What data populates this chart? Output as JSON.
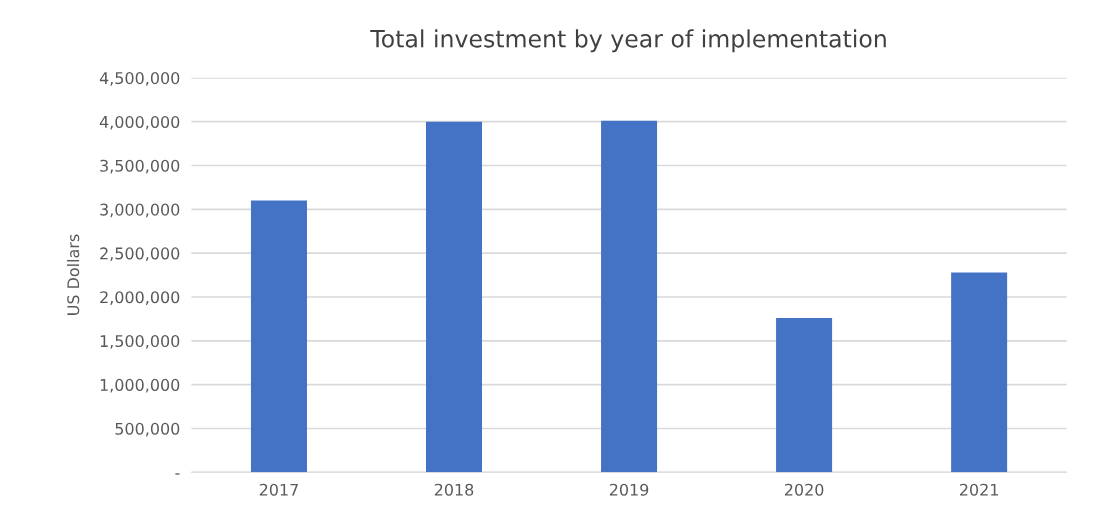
{
  "chart_data": {
    "type": "bar",
    "title": "Total investment by year of implementation",
    "ylabel": "US Dollars",
    "categories": [
      "2017",
      "2018",
      "2019",
      "2020",
      "2021"
    ],
    "values": [
      3100000,
      4000000,
      4010000,
      1760000,
      2280000
    ],
    "color": "#4472c4",
    "ylim": [
      0,
      4500000
    ],
    "yticks": [
      {
        "value": 0,
        "label": "-"
      },
      {
        "value": 500000,
        "label": "500,000"
      },
      {
        "value": 1000000,
        "label": "1,000,000"
      },
      {
        "value": 1500000,
        "label": "1,500,000"
      },
      {
        "value": 2000000,
        "label": "2,000,000"
      },
      {
        "value": 2500000,
        "label": "2,500,000"
      },
      {
        "value": 3000000,
        "label": "3,000,000"
      },
      {
        "value": 3500000,
        "label": "3,500,000"
      },
      {
        "value": 4000000,
        "label": "4,000,000"
      },
      {
        "value": 4500000,
        "label": "4,500,000"
      }
    ],
    "grid": "y"
  }
}
